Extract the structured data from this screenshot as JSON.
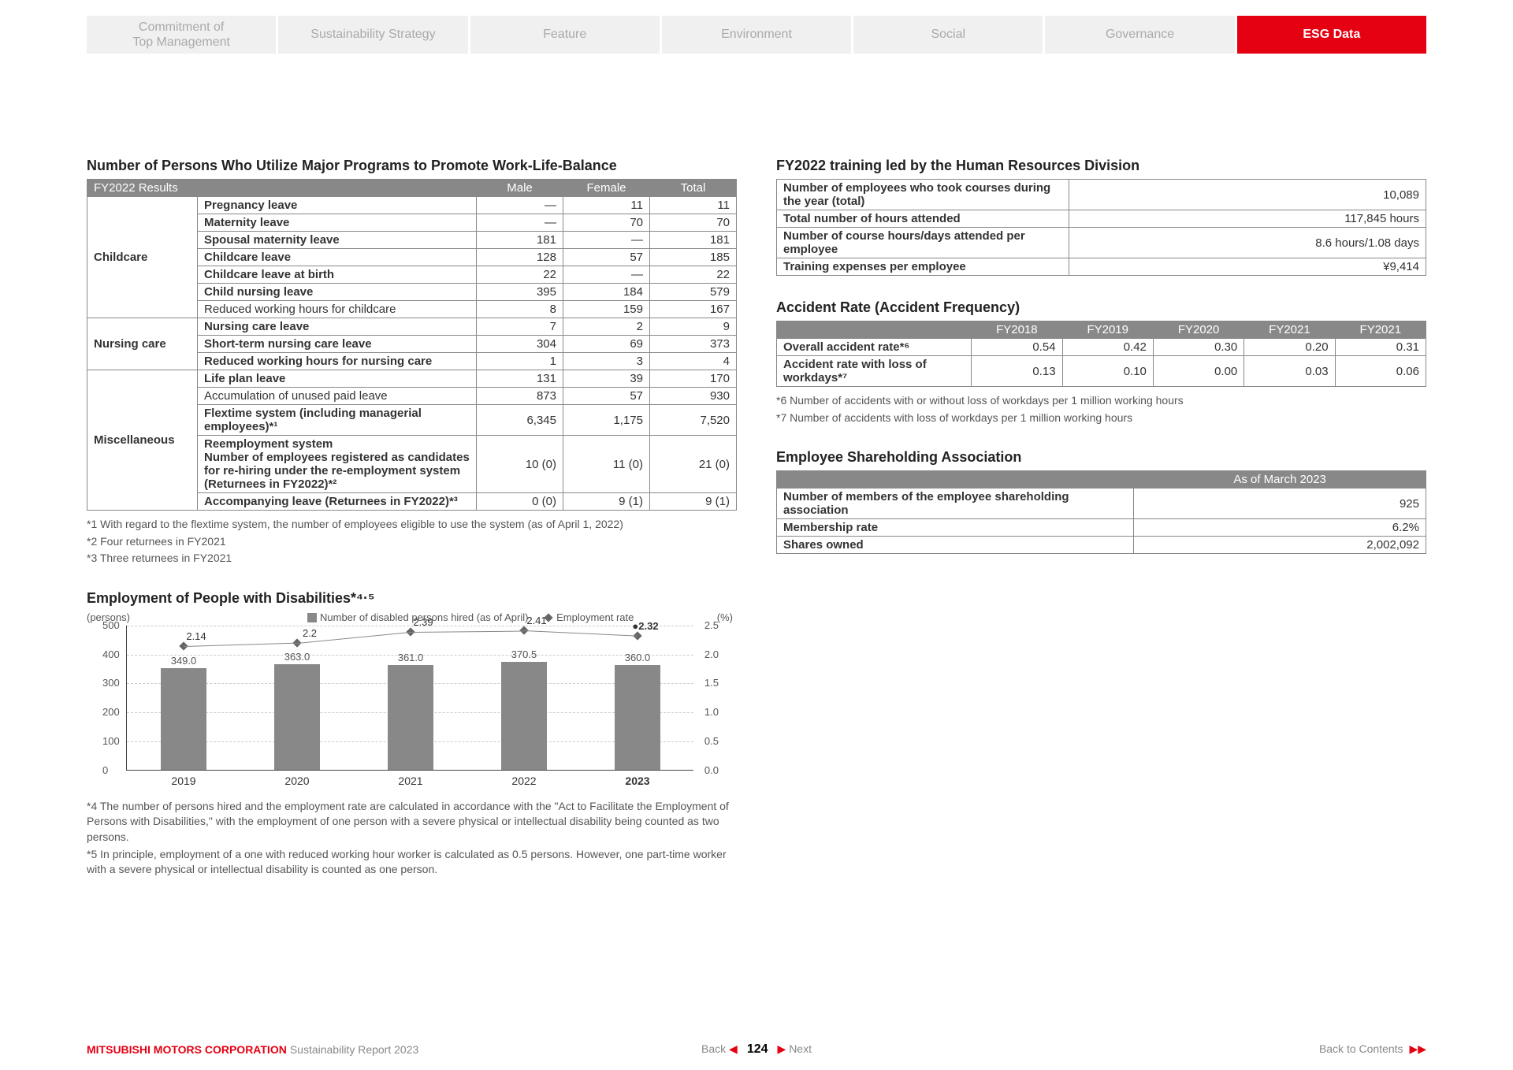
{
  "nav_tabs": [
    {
      "label": "Commitment of\nTop Management",
      "active": false
    },
    {
      "label": "Sustainability Strategy",
      "active": false
    },
    {
      "label": "Feature",
      "active": false
    },
    {
      "label": "Environment",
      "active": false
    },
    {
      "label": "Social",
      "active": false
    },
    {
      "label": "Governance",
      "active": false
    },
    {
      "label": "ESG Data",
      "active": true
    }
  ],
  "left": {
    "table1_title": "Number of Persons Who Utilize Major Programs to Promote Work-Life-Balance",
    "table1_header_left": "FY2022 Results",
    "table1_cols": [
      "Male",
      "Female",
      "Total"
    ],
    "table1_groups": [
      {
        "cat": "Childcare",
        "rows": [
          {
            "label": "Pregnancy leave",
            "vals": [
              "—",
              "11",
              "11"
            ]
          },
          {
            "label": "Maternity leave",
            "vals": [
              "—",
              "70",
              "70"
            ]
          },
          {
            "label": "Spousal maternity leave",
            "vals": [
              "181",
              "—",
              "181"
            ]
          },
          {
            "label": "Childcare leave",
            "vals": [
              "128",
              "57",
              "185"
            ]
          },
          {
            "label": "Childcare leave at birth",
            "vals": [
              "22",
              "—",
              "22"
            ]
          },
          {
            "label": "Child nursing leave",
            "vals": [
              "395",
              "184",
              "579"
            ]
          },
          {
            "label": "Reduced working hours for childcare",
            "vals": [
              "8",
              "159",
              "167"
            ],
            "nobold": true
          }
        ]
      },
      {
        "cat": "Nursing care",
        "rows": [
          {
            "label": "Nursing care leave",
            "vals": [
              "7",
              "2",
              "9"
            ]
          },
          {
            "label": "Short-term nursing care leave",
            "vals": [
              "304",
              "69",
              "373"
            ]
          },
          {
            "label": "Reduced working hours for nursing care",
            "vals": [
              "1",
              "3",
              "4"
            ]
          }
        ]
      },
      {
        "cat": "Miscellaneous",
        "rows": [
          {
            "label": "Life plan leave",
            "vals": [
              "131",
              "39",
              "170"
            ]
          },
          {
            "label": "Accumulation of unused paid leave",
            "vals": [
              "873",
              "57",
              "930"
            ],
            "nobold": true
          },
          {
            "label": "Flextime system (including managerial employees)*¹",
            "vals": [
              "6,345",
              "1,175",
              "7,520"
            ]
          },
          {
            "label": "Reemployment system\n   Number of employees registered as candidates for re-hiring under the re-employment system (Returnees in FY2022)*²",
            "vals": [
              "10 (0)",
              "11 (0)",
              "21 (0)"
            ]
          },
          {
            "label": "Accompanying leave (Returnees in FY2022)*³",
            "vals": [
              "0 (0)",
              "9 (1)",
              "9 (1)"
            ]
          }
        ]
      }
    ],
    "footnotes1": [
      "*1 With regard to the flextime system, the number of employees eligible to use the system (as of April 1, 2022)",
      "*2 Four returnees in FY2021",
      "*3 Three returnees in FY2021"
    ],
    "chart_title": "Employment of People with Disabilities*⁴·⁵",
    "chart_unit_left": "(persons)",
    "chart_unit_right": "(%)",
    "chart_legend_bar": "Number of disabled persons hired (as of April)",
    "chart_legend_pt": "Employment rate",
    "chart": {
      "y_left_ticks": [
        0,
        100,
        200,
        300,
        400,
        500
      ],
      "y_left_max": 500,
      "y_right_ticks": [
        "0.0",
        "0.5",
        "1.0",
        "1.5",
        "2.0",
        "2.5"
      ],
      "y_right_max": 2.5,
      "bar_color": "#888888",
      "pt_color": "#666666",
      "grid_color": "#cccccc",
      "data": [
        {
          "x": "2019",
          "bar": 349.0,
          "bar_label": "349.0",
          "rate": 2.14,
          "rate_label": "2.14"
        },
        {
          "x": "2020",
          "bar": 363.0,
          "bar_label": "363.0",
          "rate": 2.2,
          "rate_label": "2.2"
        },
        {
          "x": "2021",
          "bar": 361.0,
          "bar_label": "361.0",
          "rate": 2.39,
          "rate_label": "2.39"
        },
        {
          "x": "2022",
          "bar": 370.5,
          "bar_label": "370.5",
          "rate": 2.41,
          "rate_label": "2.41"
        },
        {
          "x": "2023",
          "bar": 360.0,
          "bar_label": "360.0",
          "rate": 2.32,
          "rate_label": "2.32",
          "bold": true
        }
      ]
    },
    "footnotes2": [
      "*4 The number of persons hired and the employment rate are calculated in accordance with the \"Act to Facilitate the Employment of Persons with Disabilities,\" with the employment of one person with a severe physical or intellectual disability being counted as two persons.",
      "*5 In principle, employment of a one with reduced working hour worker is calculated as 0.5 persons. However, one part-time worker with a severe physical or intellectual disability is counted as one person."
    ]
  },
  "right": {
    "t2_title": "FY2022 training led by the Human Resources Division",
    "t2_rows": [
      {
        "label": "Number of employees who took courses during the year (total)",
        "val": "10,089"
      },
      {
        "label": "Total number of hours attended",
        "val": "117,845 hours"
      },
      {
        "label": "Number of course hours/days attended per employee",
        "val": "8.6 hours/1.08 days"
      },
      {
        "label": "Training expenses per employee",
        "val": "¥9,414"
      }
    ],
    "t3_title": "Accident Rate (Accident Frequency)",
    "t3_cols": [
      "FY2018",
      "FY2019",
      "FY2020",
      "FY2021",
      "FY2021"
    ],
    "t3_rows": [
      {
        "label": "Overall accident rate*⁶",
        "vals": [
          "0.54",
          "0.42",
          "0.30",
          "0.20",
          "0.31"
        ]
      },
      {
        "label": "Accident rate with loss of workdays*⁷",
        "vals": [
          "0.13",
          "0.10",
          "0.00",
          "0.03",
          "0.06"
        ]
      }
    ],
    "t3_footnotes": [
      "*6 Number of accidents with or without loss of workdays per 1 million working hours",
      "*7 Number of accidents with loss of workdays per 1 million working hours"
    ],
    "t4_title": "Employee Shareholding Association",
    "t4_header": "As of March 2023",
    "t4_rows": [
      {
        "label": "Number of members of the employee shareholding association",
        "val": "925"
      },
      {
        "label": "Membership rate",
        "val": "6.2%"
      },
      {
        "label": "Shares owned",
        "val": "2,002,092"
      }
    ]
  },
  "footer": {
    "company": "MITSUBISHI MOTORS CORPORATION",
    "report": "Sustainability Report 2023",
    "back": "Back",
    "page": "124",
    "next": "Next",
    "contents": "Back to Contents"
  }
}
